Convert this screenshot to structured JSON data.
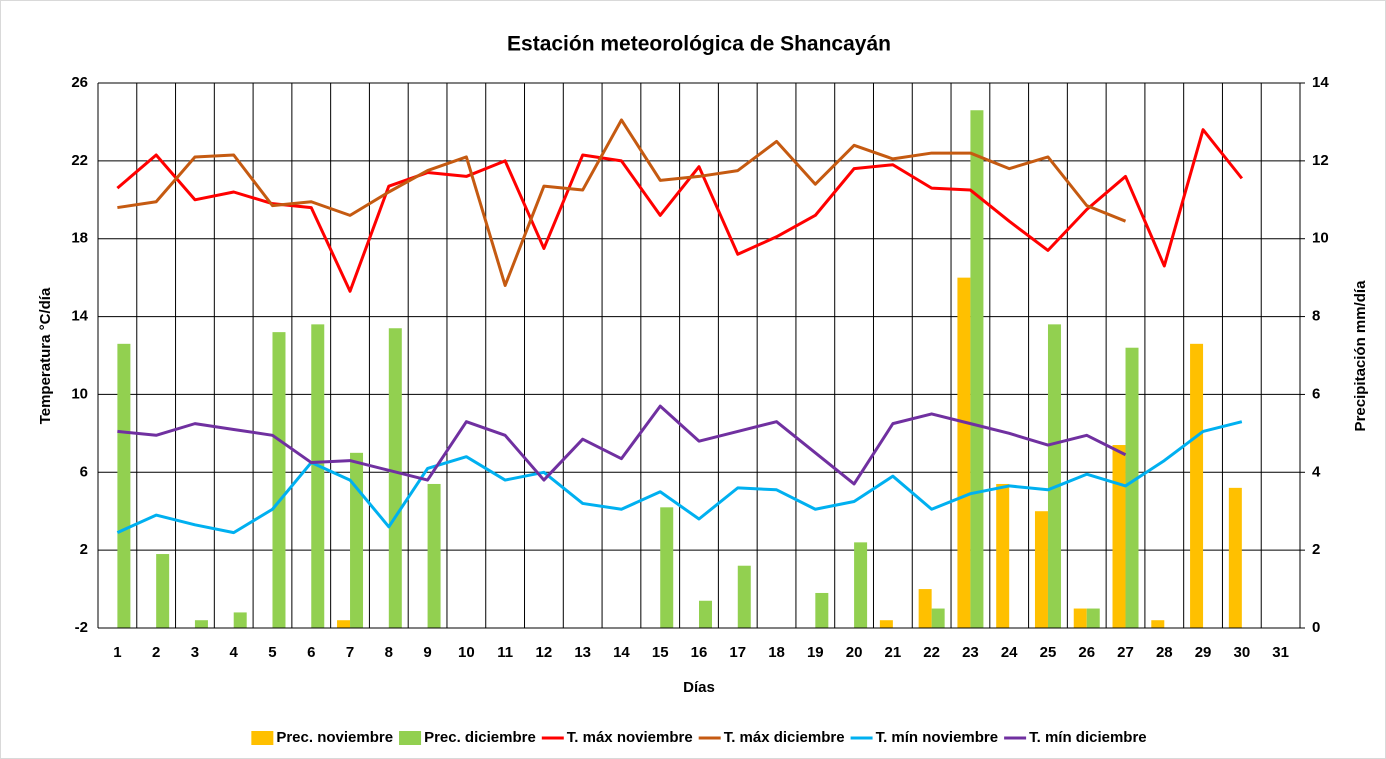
{
  "chart_data": {
    "type": "bar_line",
    "title": "Estación meteorológica de Shancayán",
    "x_label": "Días",
    "y_label": "Temperatura °C/día",
    "y2_label": "Precipitación mm/día",
    "categories": [
      "1",
      "2",
      "3",
      "4",
      "5",
      "6",
      "7",
      "8",
      "9",
      "10",
      "11",
      "12",
      "13",
      "14",
      "15",
      "16",
      "17",
      "18",
      "19",
      "20",
      "21",
      "22",
      "23",
      "24",
      "25",
      "26",
      "27",
      "28",
      "29",
      "30",
      "31"
    ],
    "ylim": [
      -2,
      26
    ],
    "yticks": [
      -2,
      2,
      6,
      10,
      14,
      18,
      22,
      26
    ],
    "y2lim": [
      0,
      14
    ],
    "y2ticks": [
      0,
      2,
      4,
      6,
      8,
      10,
      12,
      14
    ],
    "grid": true,
    "legend": "bottom",
    "series": [
      {
        "name": "Prec. noviembre",
        "type": "bar",
        "axis": "y2",
        "color": "#ffc000",
        "values": [
          null,
          null,
          null,
          null,
          null,
          null,
          0.2,
          null,
          null,
          null,
          null,
          null,
          null,
          null,
          null,
          null,
          null,
          null,
          null,
          null,
          0.2,
          1.0,
          9.0,
          3.7,
          3.0,
          0.5,
          4.7,
          0.2,
          7.3,
          3.6,
          null
        ]
      },
      {
        "name": "Prec. diciembre",
        "type": "bar",
        "axis": "y2",
        "color": "#92d050",
        "values": [
          7.3,
          1.9,
          0.2,
          0.4,
          7.6,
          7.8,
          4.5,
          7.7,
          3.7,
          null,
          null,
          null,
          null,
          null,
          3.1,
          0.7,
          1.6,
          null,
          0.9,
          2.2,
          null,
          0.5,
          13.3,
          null,
          7.8,
          0.5,
          7.2,
          null,
          null,
          null,
          null
        ]
      },
      {
        "name": "T. máx noviembre",
        "type": "line",
        "color": "#ff0000",
        "values": [
          20.6,
          22.3,
          20.0,
          20.4,
          19.8,
          19.6,
          15.3,
          20.7,
          21.4,
          21.2,
          22.0,
          17.5,
          22.3,
          22.0,
          19.2,
          21.7,
          17.2,
          18.1,
          19.2,
          21.6,
          21.8,
          20.6,
          20.5,
          18.9,
          17.4,
          19.5,
          21.2,
          16.6,
          23.6,
          21.1,
          null
        ]
      },
      {
        "name": "T. máx diciembre",
        "type": "line",
        "color": "#c55a11",
        "values": [
          19.6,
          19.9,
          22.2,
          22.3,
          19.7,
          19.9,
          19.2,
          20.4,
          21.5,
          22.2,
          15.6,
          20.7,
          20.5,
          24.1,
          21.0,
          21.2,
          21.5,
          23.0,
          20.8,
          22.8,
          22.1,
          22.4,
          22.4,
          21.6,
          22.2,
          19.7,
          18.9,
          null,
          null,
          null,
          null
        ]
      },
      {
        "name": "T. mín noviembre",
        "type": "line",
        "color": "#00b0f0",
        "values": [
          2.9,
          3.8,
          3.3,
          2.9,
          4.1,
          6.5,
          5.6,
          3.2,
          6.2,
          6.8,
          5.6,
          6.0,
          4.4,
          4.1,
          5.0,
          3.6,
          5.2,
          5.1,
          4.1,
          4.5,
          5.8,
          4.1,
          4.9,
          5.3,
          5.1,
          5.9,
          5.3,
          6.6,
          8.1,
          8.6,
          null
        ]
      },
      {
        "name": "T. mín diciembre",
        "type": "line",
        "color": "#7030a0",
        "values": [
          8.1,
          7.9,
          8.5,
          8.2,
          7.9,
          6.5,
          6.6,
          6.1,
          5.6,
          8.6,
          7.9,
          5.6,
          7.7,
          6.7,
          9.4,
          7.6,
          8.1,
          8.6,
          7.0,
          5.4,
          8.5,
          9.0,
          8.5,
          8.0,
          7.4,
          7.9,
          6.9,
          null,
          null,
          null,
          null
        ]
      }
    ]
  }
}
